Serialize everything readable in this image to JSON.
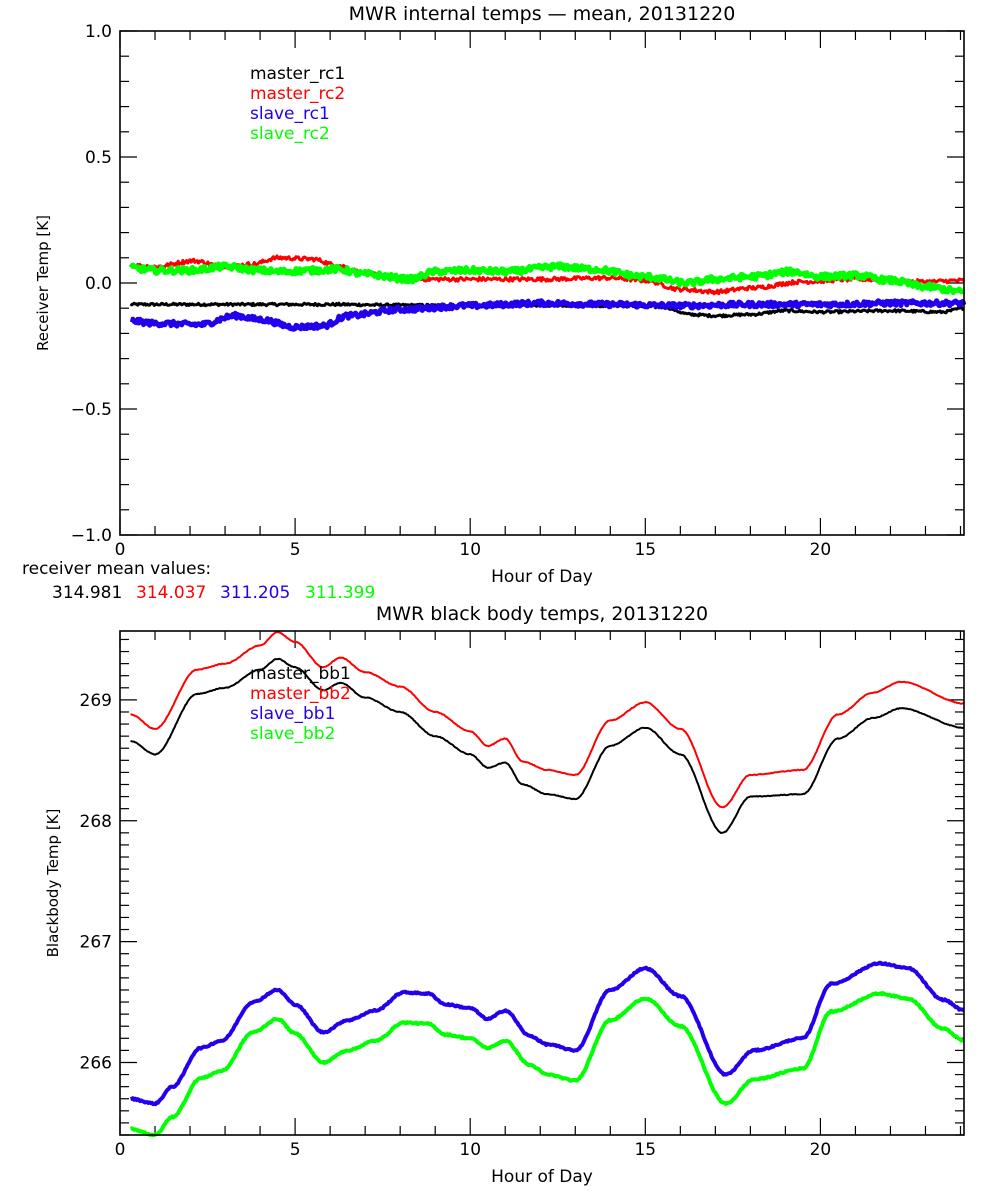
{
  "chart_data": [
    {
      "type": "line",
      "title": "MWR internal temps — mean, 20131220",
      "xlabel": "Hour of Day",
      "ylabel": "Receiver Temp [K]",
      "xlim": [
        0,
        24.1
      ],
      "ylim": [
        -1.0,
        1.0
      ],
      "xticks": [
        0,
        5,
        10,
        15,
        20
      ],
      "xtick_labels": [
        "0",
        "5",
        "10",
        "15",
        "20"
      ],
      "x_minor_step": 1,
      "yticks": [
        -1.0,
        -0.5,
        0.0,
        0.5,
        1.0
      ],
      "ytick_labels": [
        "−1.0",
        "−0.5",
        "0.0",
        "0.5",
        "1.0"
      ],
      "y_minor_step": 0.1,
      "grid": false,
      "legend_position": "top-left",
      "series": [
        {
          "name": "master_rc1",
          "color": "#000000",
          "noise": 0.005,
          "x": [
            0.3,
            2,
            4,
            6,
            8,
            10,
            12,
            14,
            15.5,
            16.3,
            17,
            18,
            19,
            20,
            22,
            23.5,
            24.1
          ],
          "y": [
            -0.085,
            -0.085,
            -0.085,
            -0.085,
            -0.088,
            -0.09,
            -0.088,
            -0.09,
            -0.095,
            -0.125,
            -0.13,
            -0.125,
            -0.11,
            -0.115,
            -0.11,
            -0.115,
            -0.1
          ]
        },
        {
          "name": "master_rc2",
          "color": "#ff0000",
          "noise": 0.008,
          "x": [
            0.3,
            1,
            2.1,
            3,
            3.8,
            4.5,
            5.5,
            6.2,
            7,
            8,
            9,
            10,
            12,
            14,
            15,
            16,
            17,
            18,
            19.5,
            21,
            23,
            24.1
          ],
          "y": [
            0.07,
            0.065,
            0.088,
            0.065,
            0.075,
            0.1,
            0.095,
            0.07,
            0.04,
            0.015,
            0.015,
            0.015,
            0.015,
            0.02,
            0.01,
            -0.025,
            -0.035,
            -0.02,
            0.005,
            0.015,
            0.005,
            0.01
          ]
        },
        {
          "name": "slave_rc1",
          "color": "#2200ee",
          "noise": 0.01,
          "x": [
            0.3,
            1,
            2.3,
            3.3,
            4,
            5,
            5.8,
            6.5,
            8,
            10,
            12,
            14,
            16,
            18,
            20,
            22,
            24.1
          ],
          "y": [
            -0.15,
            -0.16,
            -0.165,
            -0.13,
            -0.145,
            -0.175,
            -0.17,
            -0.13,
            -0.105,
            -0.09,
            -0.08,
            -0.085,
            -0.09,
            -0.085,
            -0.085,
            -0.08,
            -0.08
          ]
        },
        {
          "name": "slave_rc2",
          "color": "#00ff00",
          "noise": 0.012,
          "x": [
            0.3,
            1,
            2,
            3,
            4,
            4.5,
            5.5,
            6.2,
            7,
            8.3,
            9,
            10,
            11,
            12.5,
            13.5,
            15,
            16.2,
            17,
            18,
            19.2,
            20,
            21,
            22,
            23,
            24.1
          ],
          "y": [
            0.06,
            0.05,
            0.05,
            0.065,
            0.05,
            0.045,
            0.05,
            0.055,
            0.035,
            0.015,
            0.045,
            0.05,
            0.045,
            0.065,
            0.055,
            0.025,
            0.0,
            0.015,
            0.025,
            0.045,
            0.025,
            0.03,
            0.01,
            -0.015,
            -0.035
          ]
        }
      ],
      "annotation": {
        "label": "receiver mean values:",
        "values": [
          {
            "text": "314.981",
            "color": "#000000"
          },
          {
            "text": "314.037",
            "color": "#ff0000"
          },
          {
            "text": "311.205",
            "color": "#2200ee"
          },
          {
            "text": "311.399",
            "color": "#00ff00"
          }
        ]
      }
    },
    {
      "type": "line",
      "title": "MWR black body temps, 20131220",
      "xlabel": "Hour of Day",
      "ylabel": "Blackbody Temp [K]",
      "xlim": [
        0,
        24.1
      ],
      "ylim": [
        265.4,
        269.57
      ],
      "xticks": [
        0,
        5,
        10,
        15,
        20
      ],
      "xtick_labels": [
        "0",
        "5",
        "10",
        "15",
        "20"
      ],
      "x_minor_step": 1,
      "yticks": [
        266,
        267,
        268,
        269
      ],
      "ytick_labels": [
        "266",
        "267",
        "268",
        "269"
      ],
      "y_minor_step": 0.1,
      "grid": false,
      "legend_position": "top-left",
      "series": [
        {
          "name": "master_bb1",
          "color": "#000000",
          "noise": 0.003,
          "x": [
            0.3,
            1,
            2.2,
            3,
            4,
            4.5,
            5,
            5.8,
            6.3,
            7,
            8,
            9,
            10,
            10.5,
            11,
            11.5,
            12.2,
            13,
            14,
            15,
            16,
            17.2,
            18,
            19.5,
            20.5,
            21.5,
            22.3,
            24.1
          ],
          "y": [
            268.66,
            268.55,
            269.05,
            269.1,
            269.25,
            269.34,
            269.27,
            269.08,
            269.14,
            269.02,
            268.9,
            268.7,
            268.55,
            268.44,
            268.48,
            268.3,
            268.22,
            268.18,
            268.62,
            268.77,
            268.55,
            267.9,
            268.2,
            268.22,
            268.68,
            268.85,
            268.93,
            268.77
          ]
        },
        {
          "name": "master_bb2",
          "color": "#ff0000",
          "noise": 0.003,
          "x": [
            0.3,
            1,
            2.2,
            3,
            4,
            4.5,
            5,
            5.8,
            6.3,
            7,
            8,
            9,
            10,
            10.5,
            11,
            11.5,
            12.2,
            13,
            14,
            15,
            16,
            17.2,
            18,
            19.5,
            20.5,
            21.5,
            22.3,
            24.1
          ],
          "y": [
            268.88,
            268.76,
            269.25,
            269.3,
            269.45,
            269.56,
            269.48,
            269.27,
            269.35,
            269.23,
            269.11,
            268.9,
            268.74,
            268.62,
            268.68,
            268.49,
            268.42,
            268.38,
            268.83,
            268.98,
            268.76,
            268.11,
            268.38,
            268.42,
            268.88,
            269.06,
            269.15,
            268.97
          ]
        },
        {
          "name": "slave_bb1",
          "color": "#2200ee",
          "noise": 0.006,
          "x": [
            0.3,
            1,
            1.5,
            2.3,
            2.9,
            3.8,
            4.5,
            5,
            5.8,
            6.5,
            7.3,
            8.1,
            8.8,
            9.3,
            10,
            10.5,
            11,
            11.7,
            12.2,
            13,
            14,
            15,
            16,
            17.3,
            18.1,
            19.5,
            20.3,
            21.7,
            22.5,
            23.5,
            24.1
          ],
          "y": [
            265.7,
            265.66,
            265.8,
            266.12,
            266.18,
            266.5,
            266.6,
            266.48,
            266.25,
            266.35,
            266.43,
            266.58,
            266.57,
            266.48,
            266.45,
            266.36,
            266.43,
            266.22,
            266.15,
            266.1,
            266.6,
            266.78,
            266.55,
            265.9,
            266.1,
            266.2,
            266.65,
            266.82,
            266.78,
            266.52,
            266.43
          ]
        },
        {
          "name": "slave_bb2",
          "color": "#00ff00",
          "noise": 0.006,
          "x": [
            0.3,
            1,
            1.5,
            2.3,
            2.9,
            3.8,
            4.5,
            5,
            5.8,
            6.5,
            7.3,
            8.1,
            8.8,
            9.3,
            10,
            10.5,
            11,
            11.7,
            12.2,
            13,
            14,
            15,
            16,
            17.3,
            18.1,
            19.5,
            20.3,
            21.7,
            22.5,
            23.5,
            24.1
          ],
          "y": [
            265.45,
            265.4,
            265.55,
            265.87,
            265.93,
            266.25,
            266.36,
            266.24,
            266.0,
            266.1,
            266.18,
            266.33,
            266.32,
            266.23,
            266.2,
            266.12,
            266.18,
            265.98,
            265.9,
            265.85,
            266.35,
            266.53,
            266.3,
            265.66,
            265.86,
            265.95,
            266.42,
            266.57,
            266.53,
            266.28,
            266.18
          ]
        }
      ]
    }
  ]
}
